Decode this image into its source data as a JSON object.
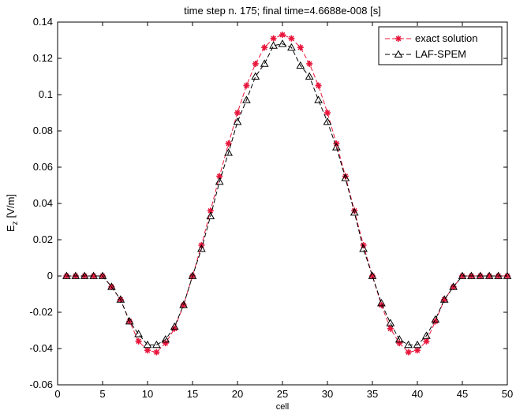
{
  "chart_data": {
    "type": "line",
    "title": "time step n. 175; final time=4.6688e-008 [s]",
    "xlabel": "cell",
    "ylabel_main": "E",
    "ylabel_sub": "z",
    "ylabel_unit": "[V/m]",
    "xlim": [
      0,
      50
    ],
    "ylim": [
      -0.06,
      0.14
    ],
    "xticks": [
      0,
      5,
      10,
      15,
      20,
      25,
      30,
      35,
      40,
      45,
      50
    ],
    "yticks": [
      -0.06,
      -0.04,
      -0.02,
      0,
      0.02,
      0.04,
      0.06,
      0.08,
      0.1,
      0.12,
      0.14
    ],
    "yticklabels": [
      "-0.06",
      "-0.04",
      "-0.02",
      "0",
      "0.02",
      "0.04",
      "0.06",
      "0.08",
      "0.1",
      "0.12",
      "0.14"
    ],
    "grid": false,
    "legend_position": "top-right",
    "x": [
      1,
      2,
      3,
      4,
      5,
      6,
      7,
      8,
      9,
      10,
      11,
      12,
      13,
      14,
      15,
      16,
      17,
      18,
      19,
      20,
      21,
      22,
      23,
      24,
      25,
      26,
      27,
      28,
      29,
      30,
      31,
      32,
      33,
      34,
      35,
      36,
      37,
      38,
      39,
      40,
      41,
      42,
      43,
      44,
      45,
      46,
      47,
      48,
      49,
      50
    ],
    "series": [
      {
        "name": "exact solution",
        "color": "#e8173c",
        "marker": "asterisk",
        "values": [
          0,
          0,
          0,
          0,
          0,
          -0.006,
          -0.013,
          -0.025,
          -0.036,
          -0.041,
          -0.042,
          -0.037,
          -0.029,
          -0.016,
          0,
          0.017,
          0.036,
          0.055,
          0.073,
          0.09,
          0.105,
          0.117,
          0.126,
          0.131,
          0.133,
          0.131,
          0.126,
          0.117,
          0.105,
          0.09,
          0.073,
          0.055,
          0.036,
          0.017,
          0,
          -0.016,
          -0.029,
          -0.037,
          -0.042,
          -0.041,
          -0.036,
          -0.025,
          -0.013,
          -0.006,
          0,
          0,
          0,
          0,
          0,
          0
        ]
      },
      {
        "name": "LAF-SPEM",
        "color": "#000000",
        "marker": "triangle",
        "values": [
          0,
          0,
          0,
          0,
          0,
          -0.006,
          -0.013,
          -0.025,
          -0.032,
          -0.038,
          -0.038,
          -0.035,
          -0.028,
          -0.016,
          0,
          0.015,
          0.033,
          0.052,
          0.068,
          0.085,
          0.097,
          0.11,
          0.117,
          0.127,
          0.128,
          0.126,
          0.116,
          0.11,
          0.097,
          0.085,
          0.071,
          0.054,
          0.035,
          0.015,
          0,
          -0.015,
          -0.026,
          -0.035,
          -0.038,
          -0.038,
          -0.033,
          -0.024,
          -0.013,
          -0.006,
          0,
          0,
          0,
          0,
          0,
          0
        ]
      }
    ]
  }
}
